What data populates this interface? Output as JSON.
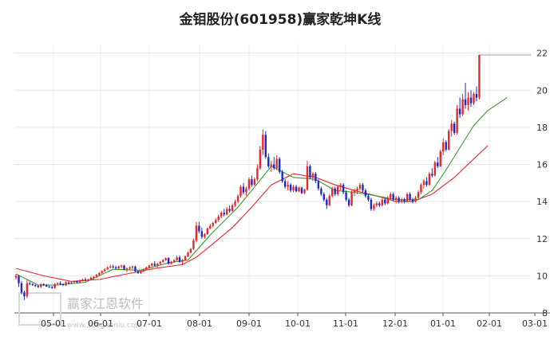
{
  "chart_data": {
    "type": "candlestick",
    "title": "金钼股份(601958)赢家乾坤K线",
    "xlabel": "",
    "ylabel": "",
    "ylim": [
      8,
      22.5
    ],
    "y_ticks": [
      8,
      10,
      12,
      14,
      16,
      18,
      20,
      22
    ],
    "x_ticks": [
      "05-01",
      "06-01",
      "07-01",
      "08-01",
      "09-01",
      "10-01",
      "11-01",
      "12-01",
      "01-01",
      "02-01",
      "03-01"
    ],
    "grid": true,
    "colors": {
      "up": "#e8262c",
      "down": "#1a29c8",
      "ma_short": "#3a9a2a",
      "ma_long": "#e8262c",
      "last_price_line": "#333333"
    },
    "candles": [
      [
        9.9,
        10.1,
        9.8,
        10.0
      ],
      [
        10.0,
        10.05,
        9.4,
        9.6
      ],
      [
        9.6,
        9.7,
        9.0,
        9.1
      ],
      [
        9.1,
        9.2,
        8.7,
        8.9
      ],
      [
        8.9,
        9.8,
        8.8,
        9.6
      ],
      [
        9.6,
        9.7,
        9.5,
        9.55
      ],
      [
        9.55,
        9.6,
        9.45,
        9.5
      ],
      [
        9.5,
        9.55,
        9.4,
        9.45
      ],
      [
        9.45,
        9.5,
        9.35,
        9.4
      ],
      [
        9.4,
        9.6,
        9.35,
        9.55
      ],
      [
        9.55,
        9.6,
        9.45,
        9.5
      ],
      [
        9.5,
        9.55,
        9.4,
        9.42
      ],
      [
        9.42,
        9.5,
        9.35,
        9.4
      ],
      [
        9.4,
        9.45,
        9.3,
        9.35
      ],
      [
        9.35,
        9.6,
        9.3,
        9.55
      ],
      [
        9.55,
        9.65,
        9.5,
        9.6
      ],
      [
        9.6,
        9.7,
        9.5,
        9.55
      ],
      [
        9.55,
        9.6,
        9.45,
        9.5
      ],
      [
        9.5,
        9.7,
        9.45,
        9.65
      ],
      [
        9.65,
        9.7,
        9.55,
        9.6
      ],
      [
        9.6,
        9.7,
        9.55,
        9.65
      ],
      [
        9.65,
        9.75,
        9.6,
        9.7
      ],
      [
        9.7,
        9.75,
        9.6,
        9.65
      ],
      [
        9.65,
        9.8,
        9.6,
        9.75
      ],
      [
        9.75,
        9.85,
        9.7,
        9.8
      ],
      [
        9.8,
        9.9,
        9.7,
        9.75
      ],
      [
        9.75,
        9.85,
        9.7,
        9.8
      ],
      [
        9.8,
        9.95,
        9.75,
        9.9
      ],
      [
        9.9,
        10.0,
        9.8,
        9.95
      ],
      [
        9.95,
        10.1,
        9.9,
        10.05
      ],
      [
        10.05,
        10.2,
        10.0,
        10.15
      ],
      [
        10.15,
        10.3,
        10.1,
        10.25
      ],
      [
        10.25,
        10.4,
        10.2,
        10.35
      ],
      [
        10.35,
        10.5,
        10.3,
        10.45
      ],
      [
        10.45,
        10.6,
        10.4,
        10.5
      ],
      [
        10.5,
        10.6,
        10.4,
        10.45
      ],
      [
        10.45,
        10.55,
        10.35,
        10.4
      ],
      [
        10.4,
        10.55,
        10.35,
        10.5
      ],
      [
        10.5,
        10.6,
        10.4,
        10.55
      ],
      [
        10.55,
        10.6,
        10.3,
        10.35
      ],
      [
        10.35,
        10.45,
        10.2,
        10.4
      ],
      [
        10.4,
        10.5,
        10.3,
        10.45
      ],
      [
        10.45,
        10.55,
        10.35,
        10.5
      ],
      [
        10.5,
        10.55,
        10.2,
        10.25
      ],
      [
        10.25,
        10.3,
        10.1,
        10.15
      ],
      [
        10.15,
        10.3,
        10.1,
        10.25
      ],
      [
        10.25,
        10.4,
        10.2,
        10.35
      ],
      [
        10.35,
        10.5,
        10.3,
        10.45
      ],
      [
        10.45,
        10.6,
        10.4,
        10.55
      ],
      [
        10.55,
        10.7,
        10.5,
        10.65
      ],
      [
        10.65,
        10.8,
        10.5,
        10.55
      ],
      [
        10.55,
        10.7,
        10.45,
        10.65
      ],
      [
        10.65,
        10.8,
        10.6,
        10.75
      ],
      [
        10.75,
        10.9,
        10.7,
        10.85
      ],
      [
        10.85,
        11.0,
        10.8,
        10.95
      ],
      [
        10.95,
        11.0,
        10.6,
        10.65
      ],
      [
        10.65,
        10.8,
        10.6,
        10.75
      ],
      [
        10.75,
        10.9,
        10.7,
        10.85
      ],
      [
        10.85,
        11.1,
        10.8,
        11.0
      ],
      [
        11.0,
        11.1,
        10.7,
        10.75
      ],
      [
        10.75,
        10.9,
        10.6,
        10.85
      ],
      [
        10.85,
        11.1,
        10.8,
        11.05
      ],
      [
        11.05,
        11.3,
        11.0,
        11.25
      ],
      [
        11.25,
        11.5,
        11.2,
        11.45
      ],
      [
        11.45,
        12.0,
        11.4,
        11.9
      ],
      [
        11.9,
        12.9,
        11.8,
        12.7
      ],
      [
        12.7,
        12.9,
        12.3,
        12.4
      ],
      [
        12.4,
        12.6,
        12.0,
        12.1
      ],
      [
        12.1,
        12.3,
        12.0,
        12.25
      ],
      [
        12.25,
        12.6,
        12.2,
        12.55
      ],
      [
        12.55,
        12.8,
        12.5,
        12.7
      ],
      [
        12.7,
        12.9,
        12.6,
        12.85
      ],
      [
        12.85,
        13.1,
        12.8,
        13.0
      ],
      [
        13.0,
        13.3,
        12.9,
        13.2
      ],
      [
        13.2,
        13.5,
        13.1,
        13.4
      ],
      [
        13.4,
        13.6,
        13.2,
        13.3
      ],
      [
        13.3,
        13.7,
        13.25,
        13.6
      ],
      [
        13.6,
        13.8,
        13.4,
        13.5
      ],
      [
        13.5,
        13.9,
        13.45,
        13.8
      ],
      [
        13.8,
        14.1,
        13.7,
        14.0
      ],
      [
        14.0,
        14.4,
        13.9,
        14.3
      ],
      [
        14.3,
        14.9,
        14.2,
        14.8
      ],
      [
        14.8,
        15.0,
        14.4,
        14.5
      ],
      [
        14.5,
        14.8,
        14.3,
        14.7
      ],
      [
        14.7,
        15.3,
        14.6,
        15.2
      ],
      [
        15.2,
        15.4,
        14.8,
        14.9
      ],
      [
        14.9,
        15.3,
        14.85,
        15.2
      ],
      [
        15.2,
        16.0,
        15.1,
        15.8
      ],
      [
        15.8,
        17.0,
        15.7,
        16.8
      ],
      [
        16.8,
        17.9,
        16.5,
        17.6
      ],
      [
        17.6,
        17.8,
        16.3,
        16.4
      ],
      [
        16.4,
        16.6,
        15.8,
        15.9
      ],
      [
        15.9,
        16.2,
        15.6,
        16.0
      ],
      [
        16.0,
        16.4,
        15.7,
        15.8
      ],
      [
        15.8,
        16.5,
        15.7,
        16.3
      ],
      [
        16.3,
        16.4,
        15.5,
        15.6
      ],
      [
        15.6,
        15.7,
        15.0,
        15.1
      ],
      [
        15.1,
        15.2,
        14.7,
        14.8
      ],
      [
        14.8,
        15.1,
        14.6,
        14.9
      ],
      [
        14.9,
        15.0,
        14.5,
        14.6
      ],
      [
        14.6,
        14.9,
        14.5,
        14.8
      ],
      [
        14.8,
        14.9,
        14.5,
        14.55
      ],
      [
        14.55,
        14.8,
        14.5,
        14.75
      ],
      [
        14.75,
        14.8,
        14.4,
        14.45
      ],
      [
        14.45,
        14.7,
        14.4,
        14.65
      ],
      [
        14.65,
        16.2,
        14.6,
        15.9
      ],
      [
        15.9,
        16.0,
        15.2,
        15.3
      ],
      [
        15.3,
        15.6,
        15.1,
        15.5
      ],
      [
        15.5,
        15.6,
        15.0,
        15.1
      ],
      [
        15.1,
        15.2,
        14.6,
        14.7
      ],
      [
        14.7,
        14.8,
        14.3,
        14.4
      ],
      [
        14.4,
        14.5,
        14.0,
        14.1
      ],
      [
        14.1,
        14.2,
        13.6,
        13.8
      ],
      [
        13.8,
        14.4,
        13.75,
        14.3
      ],
      [
        14.3,
        14.8,
        14.2,
        14.7
      ],
      [
        14.7,
        14.8,
        14.3,
        14.4
      ],
      [
        14.4,
        14.9,
        14.3,
        14.8
      ],
      [
        14.8,
        15.0,
        14.6,
        14.9
      ],
      [
        14.9,
        15.0,
        14.4,
        14.5
      ],
      [
        14.5,
        14.6,
        14.0,
        14.1
      ],
      [
        14.1,
        14.2,
        13.7,
        13.8
      ],
      [
        13.8,
        14.6,
        13.75,
        14.5
      ],
      [
        14.5,
        14.7,
        14.3,
        14.6
      ],
      [
        14.6,
        14.8,
        14.4,
        14.7
      ],
      [
        14.7,
        15.0,
        14.6,
        14.9
      ],
      [
        14.9,
        15.0,
        14.5,
        14.6
      ],
      [
        14.6,
        14.7,
        14.2,
        14.3
      ],
      [
        14.3,
        14.4,
        14.0,
        14.1
      ],
      [
        14.1,
        14.2,
        13.5,
        13.6
      ],
      [
        13.6,
        13.9,
        13.5,
        13.8
      ],
      [
        13.8,
        14.0,
        13.7,
        13.9
      ],
      [
        13.9,
        14.0,
        13.7,
        13.8
      ],
      [
        13.8,
        14.2,
        13.75,
        14.1
      ],
      [
        14.1,
        14.2,
        13.8,
        13.9
      ],
      [
        13.9,
        14.3,
        13.85,
        14.2
      ],
      [
        14.2,
        14.5,
        14.1,
        14.4
      ],
      [
        14.4,
        14.5,
        14.0,
        14.1
      ],
      [
        14.1,
        14.3,
        13.9,
        14.2
      ],
      [
        14.2,
        14.3,
        13.9,
        14.0
      ],
      [
        14.0,
        14.2,
        13.9,
        14.1
      ],
      [
        14.1,
        14.2,
        13.9,
        14.0
      ],
      [
        14.0,
        14.5,
        13.95,
        14.4
      ],
      [
        14.4,
        14.5,
        14.0,
        14.1
      ],
      [
        14.1,
        14.2,
        13.9,
        14.0
      ],
      [
        14.0,
        14.3,
        13.95,
        14.2
      ],
      [
        14.2,
        14.6,
        14.1,
        14.5
      ],
      [
        14.5,
        15.0,
        14.4,
        14.9
      ],
      [
        14.9,
        15.2,
        14.7,
        15.1
      ],
      [
        15.1,
        15.3,
        14.8,
        14.9
      ],
      [
        14.9,
        15.6,
        14.85,
        15.5
      ],
      [
        15.5,
        15.8,
        15.3,
        15.4
      ],
      [
        15.4,
        16.2,
        15.35,
        16.1
      ],
      [
        16.1,
        16.4,
        15.8,
        15.9
      ],
      [
        15.9,
        16.8,
        15.85,
        16.7
      ],
      [
        16.7,
        17.4,
        16.5,
        17.2
      ],
      [
        17.2,
        17.3,
        16.7,
        16.8
      ],
      [
        16.8,
        17.9,
        16.75,
        17.8
      ],
      [
        17.8,
        18.4,
        17.5,
        18.2
      ],
      [
        18.2,
        18.3,
        17.6,
        17.7
      ],
      [
        17.7,
        19.2,
        17.6,
        19.0
      ],
      [
        19.0,
        19.6,
        18.5,
        18.7
      ],
      [
        18.7,
        19.8,
        18.6,
        19.5
      ],
      [
        19.5,
        20.4,
        19.0,
        19.2
      ],
      [
        19.2,
        19.9,
        18.9,
        19.6
      ],
      [
        19.6,
        20.0,
        19.1,
        19.3
      ],
      [
        19.3,
        19.9,
        19.2,
        19.8
      ],
      [
        19.8,
        20.2,
        19.4,
        19.6
      ],
      [
        19.6,
        21.9,
        19.5,
        21.9
      ]
    ],
    "ma_short": [
      [
        0,
        10.1
      ],
      [
        8,
        9.5
      ],
      [
        15,
        9.5
      ],
      [
        25,
        9.65
      ],
      [
        35,
        10.35
      ],
      [
        45,
        10.3
      ],
      [
        55,
        10.7
      ],
      [
        62,
        10.85
      ],
      [
        70,
        12.2
      ],
      [
        80,
        13.7
      ],
      [
        85,
        14.6
      ],
      [
        92,
        15.9
      ],
      [
        100,
        15.3
      ],
      [
        108,
        15.2
      ],
      [
        115,
        14.6
      ],
      [
        122,
        14.5
      ],
      [
        130,
        14.3
      ],
      [
        137,
        14.1
      ],
      [
        145,
        14.1
      ],
      [
        150,
        14.6
      ],
      [
        155,
        15.7
      ],
      [
        160,
        16.9
      ],
      [
        165,
        18.1
      ],
      [
        170,
        18.9
      ],
      [
        177,
        19.6
      ]
    ],
    "ma_long": [
      [
        0,
        10.4
      ],
      [
        10,
        10.0
      ],
      [
        20,
        9.7
      ],
      [
        30,
        9.8
      ],
      [
        40,
        10.1
      ],
      [
        50,
        10.4
      ],
      [
        60,
        10.6
      ],
      [
        65,
        11.0
      ],
      [
        70,
        11.6
      ],
      [
        78,
        12.6
      ],
      [
        85,
        13.7
      ],
      [
        92,
        14.9
      ],
      [
        100,
        15.5
      ],
      [
        108,
        15.3
      ],
      [
        115,
        14.9
      ],
      [
        122,
        14.6
      ],
      [
        130,
        14.3
      ],
      [
        137,
        14.0
      ],
      [
        143,
        14.0
      ],
      [
        150,
        14.4
      ],
      [
        158,
        15.3
      ],
      [
        165,
        16.3
      ],
      [
        170,
        17.0
      ]
    ],
    "last_price": 21.9
  },
  "watermark": {
    "text": "赢家江恩软件",
    "sub": "www.360ganniu.com"
  }
}
